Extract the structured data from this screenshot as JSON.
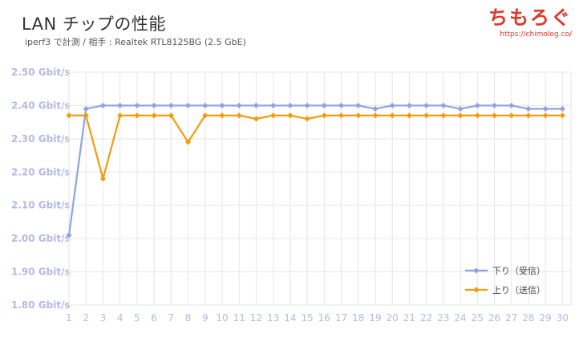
{
  "header": {
    "title": "LAN チップの性能",
    "subtitle": "iperf3 で計測 / 相手 : Realtek RTL8125BG (2.5 GbE)"
  },
  "brand": {
    "logo_text": "ちもろぐ",
    "url": "https://chimolog.co/"
  },
  "colors": {
    "download": "#8fa2e4",
    "upload": "#f29c0e",
    "tick_label": "#b4b9e6",
    "grid": "#e6e6e6",
    "brand": "#e4352a"
  },
  "chart_data": {
    "type": "line",
    "xlabel": "",
    "ylabel": "",
    "ylim": [
      1.8,
      2.5
    ],
    "y_ticks": [
      1.8,
      1.9,
      2.0,
      2.1,
      2.2,
      2.3,
      2.4,
      2.5
    ],
    "y_tick_labels": [
      "1.80 Gbit/s",
      "1.90 Gbit/s",
      "2.00 Gbit/s",
      "2.10 Gbit/s",
      "2.20 Gbit/s",
      "2.30 Gbit/s",
      "2.40 Gbit/s",
      "2.50 Gbit/s"
    ],
    "x": [
      1,
      2,
      3,
      4,
      5,
      6,
      7,
      8,
      9,
      10,
      11,
      12,
      13,
      14,
      15,
      16,
      17,
      18,
      19,
      20,
      21,
      22,
      23,
      24,
      25,
      26,
      27,
      28,
      29,
      30
    ],
    "grid": true,
    "legend_position": "bottom-right",
    "series": [
      {
        "name": "下り（受信）",
        "color": "#8fa2e4",
        "values": [
          2.01,
          2.39,
          2.4,
          2.4,
          2.4,
          2.4,
          2.4,
          2.4,
          2.4,
          2.4,
          2.4,
          2.4,
          2.4,
          2.4,
          2.4,
          2.4,
          2.4,
          2.4,
          2.39,
          2.4,
          2.4,
          2.4,
          2.4,
          2.39,
          2.4,
          2.4,
          2.4,
          2.39,
          2.39,
          2.39
        ]
      },
      {
        "name": "上り（送信）",
        "color": "#f29c0e",
        "values": [
          2.37,
          2.37,
          2.18,
          2.37,
          2.37,
          2.37,
          2.37,
          2.29,
          2.37,
          2.37,
          2.37,
          2.36,
          2.37,
          2.37,
          2.36,
          2.37,
          2.37,
          2.37,
          2.37,
          2.37,
          2.37,
          2.37,
          2.37,
          2.37,
          2.37,
          2.37,
          2.37,
          2.37,
          2.37,
          2.37
        ]
      }
    ]
  }
}
